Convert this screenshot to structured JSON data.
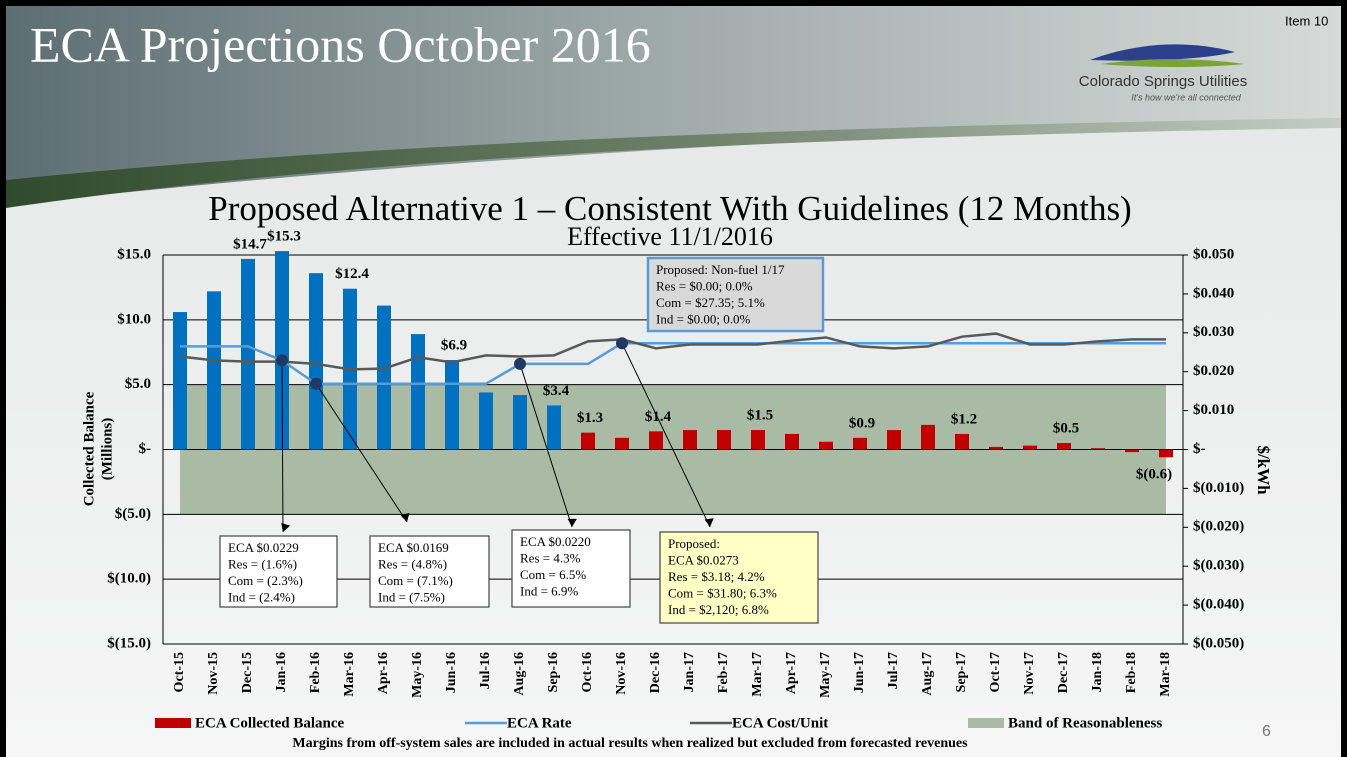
{
  "header": {
    "title": "ECA Projections October 2016",
    "item": "Item 10",
    "logo_name": "Colorado Springs Utilities",
    "logo_tagline": "It's how we're all connected"
  },
  "page_number": "6",
  "chart_data": {
    "type": "combo",
    "title": "Proposed Alternative 1 – Consistent With Guidelines (12 Months)",
    "subtitle": "Effective 11/1/2016",
    "ylabel": [
      "Collected Balance",
      "(Millions)"
    ],
    "y2label": "$/kWh",
    "categories": [
      "Oct-15",
      "Nov-15",
      "Dec-15",
      "Jan-16",
      "Feb-16",
      "Mar-16",
      "Apr-16",
      "May-16",
      "Jun-16",
      "Jul-16",
      "Aug-16",
      "Sep-16",
      "Oct-16",
      "Nov-16",
      "Dec-16",
      "Jan-17",
      "Feb-17",
      "Mar-17",
      "Apr-17",
      "May-17",
      "Jun-17",
      "Jul-17",
      "Aug-17",
      "Sep-17",
      "Oct-17",
      "Nov-17",
      "Dec-17",
      "Jan-18",
      "Feb-18",
      "Mar-18"
    ],
    "series": [
      {
        "name": "ECA Collected Balance",
        "type": "bar",
        "color": "#c00000",
        "colors": [
          "#0070c0",
          "#0070c0",
          "#0070c0",
          "#0070c0",
          "#0070c0",
          "#0070c0",
          "#0070c0",
          "#0070c0",
          "#0070c0",
          "#0070c0",
          "#0070c0",
          "#0070c0",
          "#c00000",
          "#c00000",
          "#c00000",
          "#c00000",
          "#c00000",
          "#c00000",
          "#c00000",
          "#c00000",
          "#c00000",
          "#c00000",
          "#c00000",
          "#c00000",
          "#c00000",
          "#c00000",
          "#c00000",
          "#c00000",
          "#c00000",
          "#c00000"
        ],
        "values": [
          10.6,
          12.2,
          14.7,
          15.3,
          13.6,
          12.4,
          11.1,
          8.9,
          6.9,
          4.4,
          4.2,
          3.4,
          1.3,
          0.9,
          1.4,
          1.5,
          1.5,
          1.5,
          1.2,
          0.6,
          0.9,
          1.5,
          1.9,
          1.2,
          0.2,
          0.3,
          0.5,
          0.1,
          -0.2,
          -0.6
        ],
        "value_labels": [
          null,
          null,
          "$14.7",
          "$15.3",
          null,
          "$12.4",
          null,
          null,
          "$6.9",
          null,
          null,
          "$3.4",
          "$1.3",
          null,
          "$1.4",
          null,
          null,
          "$1.5",
          null,
          null,
          "$0.9",
          null,
          null,
          "$1.2",
          null,
          null,
          "$0.5",
          null,
          null,
          "$(0.6)"
        ]
      },
      {
        "name": "ECA Rate",
        "type": "line",
        "axis": "y2",
        "color": "#5b9bd5",
        "values": [
          0.0265,
          0.0265,
          0.0265,
          0.0229,
          0.0169,
          0.0169,
          0.0169,
          0.0169,
          0.0169,
          0.0169,
          0.022,
          0.022,
          0.022,
          0.0273,
          0.0273,
          0.0273,
          0.0273,
          0.0273,
          0.0273,
          0.0273,
          0.0273,
          0.0273,
          0.0273,
          0.0273,
          0.0273,
          0.0273,
          0.0273,
          0.0273,
          0.0273,
          0.0273
        ]
      },
      {
        "name": "ECA Cost/Unit",
        "type": "line",
        "axis": "y2",
        "color": "#595959",
        "values": [
          0.0239,
          0.0229,
          0.0226,
          0.0226,
          0.022,
          0.0206,
          0.0208,
          0.0237,
          0.0224,
          0.0242,
          0.0239,
          0.0242,
          0.0278,
          0.0283,
          0.026,
          0.027,
          0.027,
          0.027,
          0.028,
          0.0288,
          0.0265,
          0.026,
          0.0265,
          0.029,
          0.0298,
          0.027,
          0.027,
          0.0278,
          0.0283,
          0.0283
        ]
      }
    ],
    "band": {
      "name": "Band of Reasonableness",
      "color": "#a9bba5",
      "range": [
        -5,
        5
      ]
    },
    "ylim": [
      -15,
      15
    ],
    "yticks": [
      {
        "value": 15,
        "label": "$15.0"
      },
      {
        "value": 10,
        "label": "$10.0"
      },
      {
        "value": 5,
        "label": "$5.0"
      },
      {
        "value": 0,
        "label": "$-"
      },
      {
        "value": -5,
        "label": "$(5.0)"
      },
      {
        "value": -10,
        "label": "$(10.0)"
      },
      {
        "value": -15,
        "label": "$(15.0)"
      }
    ],
    "y2lim": [
      -0.05,
      0.05
    ],
    "y2ticks": [
      {
        "value": 0.05,
        "label": "$0.050"
      },
      {
        "value": 0.04,
        "label": "$0.040"
      },
      {
        "value": 0.03,
        "label": "$0.030"
      },
      {
        "value": 0.02,
        "label": "$0.020"
      },
      {
        "value": 0.01,
        "label": "$0.010"
      },
      {
        "value": 0,
        "label": "$-"
      },
      {
        "value": -0.01,
        "label": "$(0.010)"
      },
      {
        "value": -0.02,
        "label": "$(0.020)"
      },
      {
        "value": -0.03,
        "label": "$(0.030)"
      },
      {
        "value": -0.04,
        "label": "$(0.040)"
      },
      {
        "value": -0.05,
        "label": "$(0.050)"
      }
    ],
    "grid": true,
    "annotations": [
      {
        "category": "Jan-16",
        "lines": [
          "ECA $0.0229",
          "Res = (1.6%)",
          "Com = (2.3%)",
          "Ind = (2.4%)"
        ]
      },
      {
        "category": "Feb-16",
        "lines": [
          "ECA $0.0169",
          "Res = (4.8%)",
          "Com = (7.1%)",
          "Ind = (7.5%)"
        ]
      },
      {
        "category": "Aug-16",
        "lines": [
          "ECA $0.0220",
          "Res = 4.3%",
          "Com = 6.5%",
          "Ind = 6.9%"
        ]
      },
      {
        "category": "Nov-16",
        "lines": [
          "Proposed:",
          "ECA $0.0273",
          "Res = $3.18; 4.2%",
          "Com = $31.80; 6.3%",
          "Ind = $2,120; 6.8%"
        ]
      }
    ],
    "note": [
      "Proposed:  Non-fuel 1/17",
      "Res = $0.00; 0.0%",
      "Com = $27.35; 5.1%",
      "Ind = $0.00; 0.0%"
    ],
    "footnote": "Margins from off-system  sales are included in actual results when realized but excluded from  forecasted revenues"
  }
}
